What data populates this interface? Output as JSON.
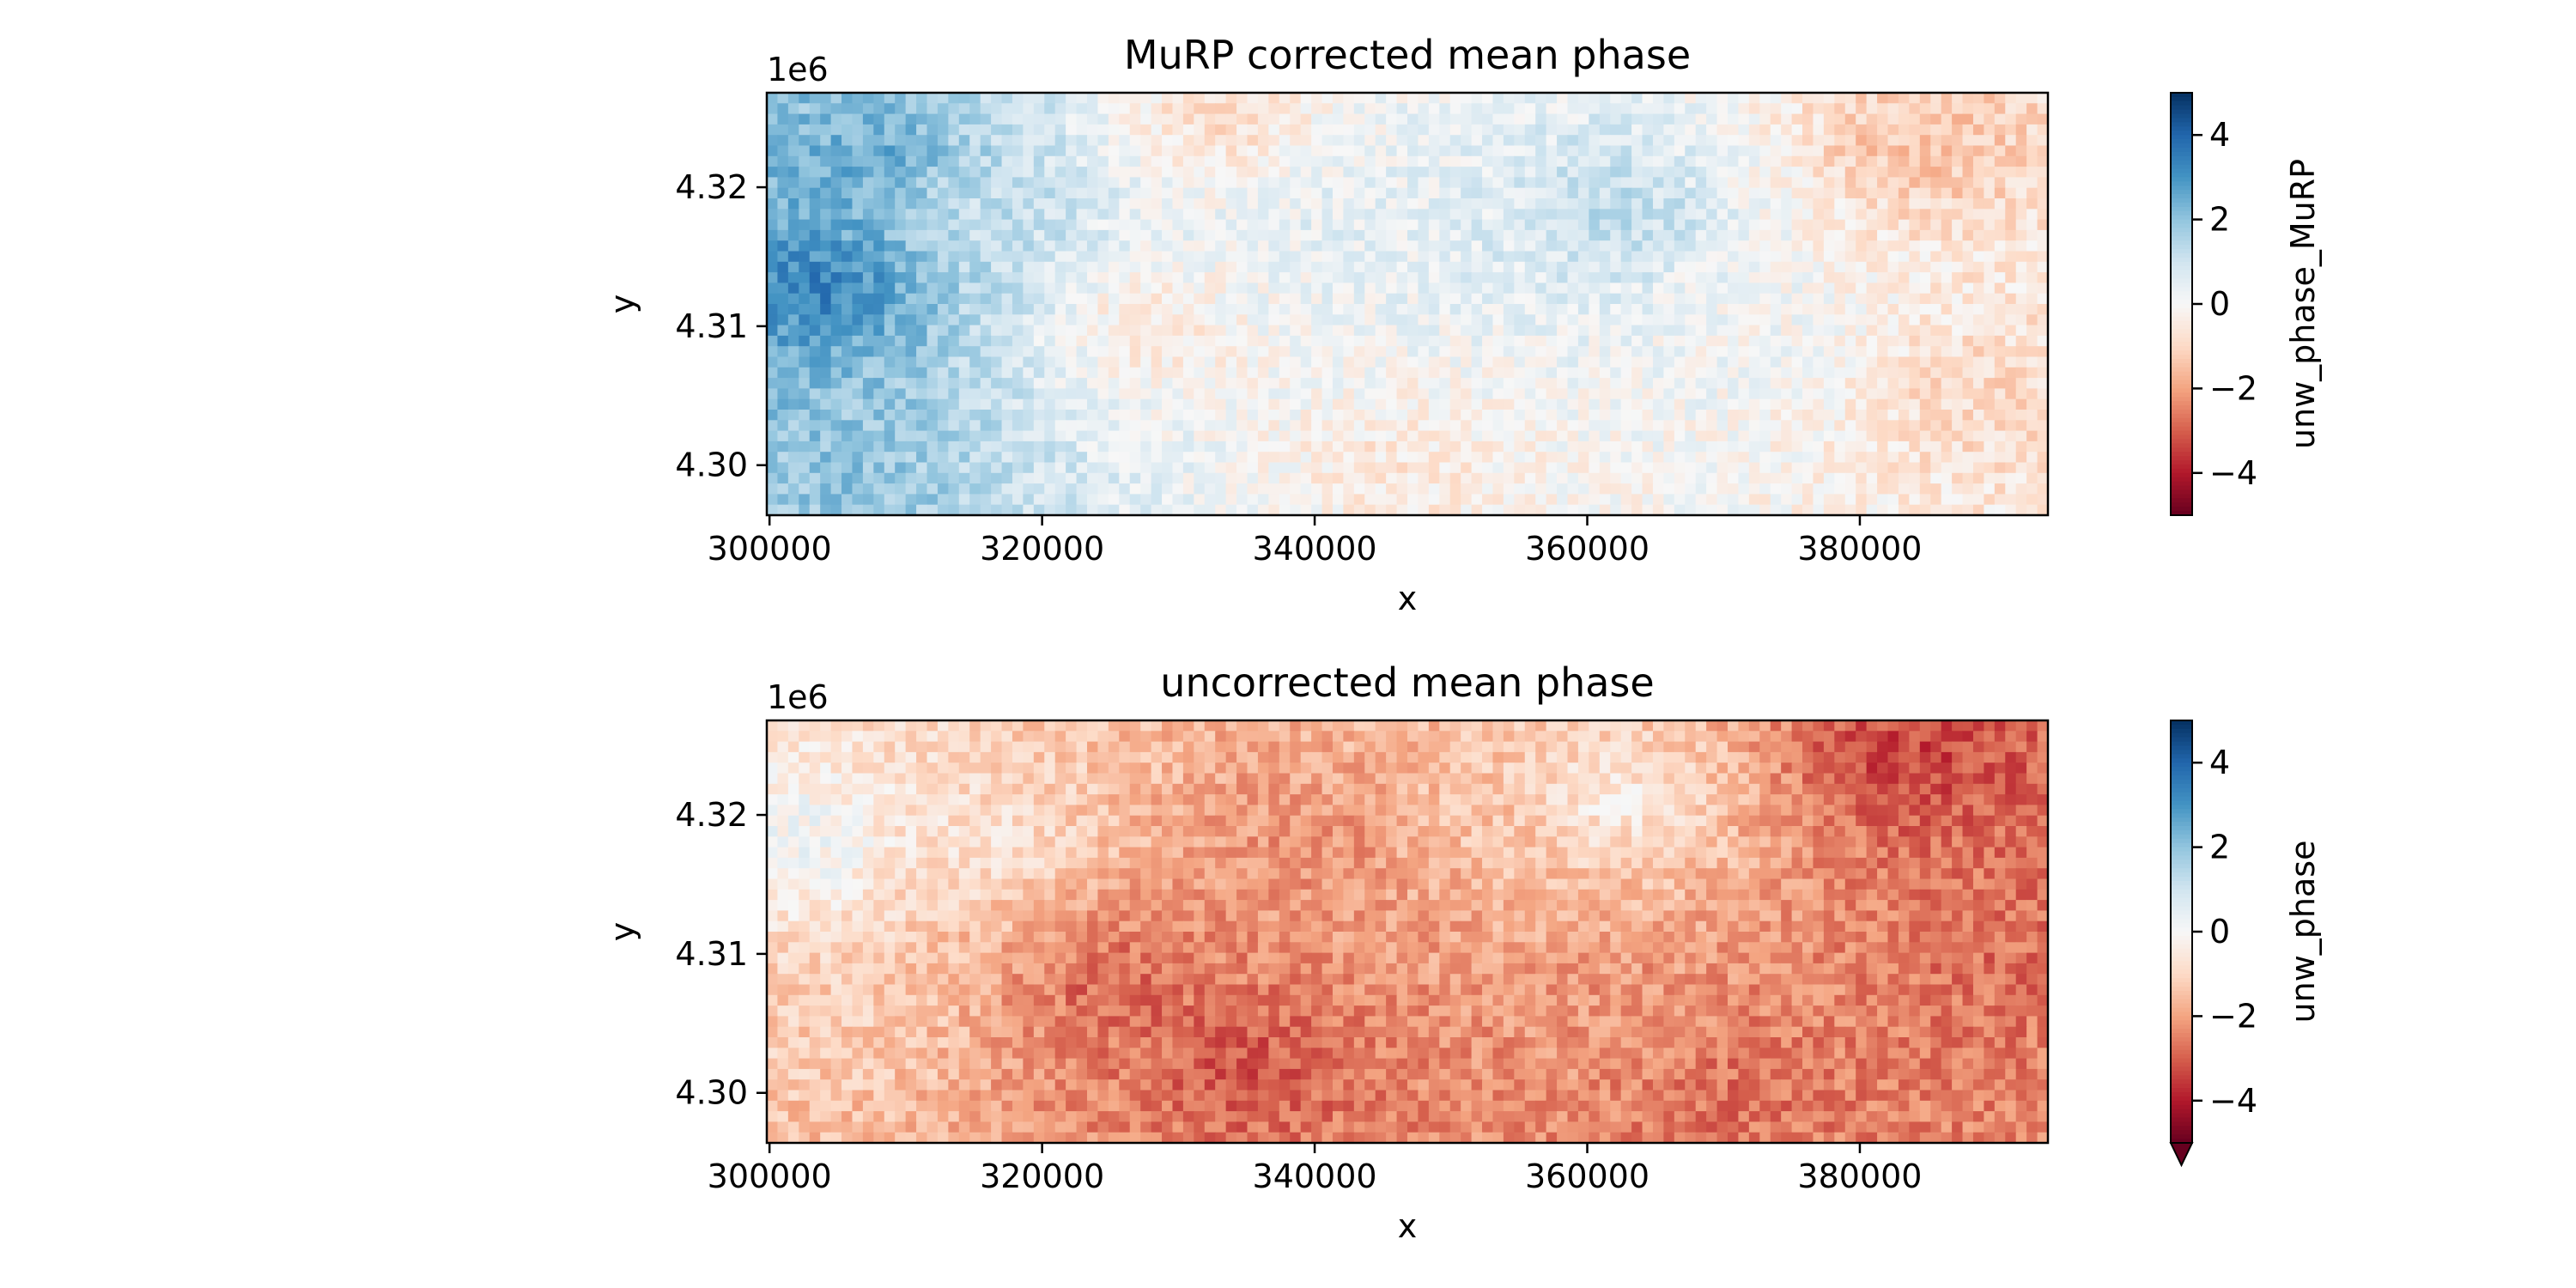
{
  "chart_data": [
    {
      "type": "heatmap",
      "title": "MuRP corrected mean phase",
      "xlabel": "x",
      "ylabel": "y",
      "y_offset_label": "1e6",
      "xlim": [
        299800,
        393800
      ],
      "ylim": [
        4.2964,
        4.3268
      ],
      "xticks": [
        300000,
        320000,
        340000,
        360000,
        380000
      ],
      "xtick_labels": [
        "300000",
        "320000",
        "340000",
        "360000",
        "380000"
      ],
      "yticks": [
        4.3,
        4.31,
        4.32
      ],
      "ytick_labels": [
        "4.30",
        "4.31",
        "4.32"
      ],
      "colormap": "RdBu",
      "colorbar": {
        "label": "unw_phase_MuRP",
        "range": [
          -5,
          5
        ],
        "ticks": [
          4,
          2,
          0,
          -2,
          -4
        ],
        "tick_labels": [
          "4",
          "2",
          "0",
          "−2",
          "−4"
        ],
        "extend_min": false
      },
      "field_pattern": [
        {
          "x": 304000,
          "y": 4.313,
          "v": 3.6
        },
        {
          "x": 308000,
          "y": 4.322,
          "v": 2.6
        },
        {
          "x": 306000,
          "y": 4.3,
          "v": 2.0
        },
        {
          "x": 316000,
          "y": 4.318,
          "v": 1.1
        },
        {
          "x": 328000,
          "y": 4.31,
          "v": -0.7
        },
        {
          "x": 342000,
          "y": 4.318,
          "v": 0.5
        },
        {
          "x": 346000,
          "y": 4.3,
          "v": -0.6
        },
        {
          "x": 362000,
          "y": 4.318,
          "v": 1.4
        },
        {
          "x": 372000,
          "y": 4.31,
          "v": 0.1
        },
        {
          "x": 384000,
          "y": 4.323,
          "v": -1.5
        },
        {
          "x": 389000,
          "y": 4.305,
          "v": -1.0
        },
        {
          "x": 333000,
          "y": 4.325,
          "v": -1.0
        }
      ]
    },
    {
      "type": "heatmap",
      "title": "uncorrected mean phase",
      "xlabel": "x",
      "ylabel": "y",
      "y_offset_label": "1e6",
      "xlim": [
        299800,
        393800
      ],
      "ylim": [
        4.2964,
        4.3268
      ],
      "xticks": [
        300000,
        320000,
        340000,
        360000,
        380000
      ],
      "xtick_labels": [
        "300000",
        "320000",
        "340000",
        "360000",
        "380000"
      ],
      "yticks": [
        4.3,
        4.31,
        4.32
      ],
      "ytick_labels": [
        "4.30",
        "4.31",
        "4.32"
      ],
      "colormap": "RdBu",
      "colorbar": {
        "label": "unw_phase",
        "range": [
          -5,
          5
        ],
        "ticks": [
          4,
          2,
          0,
          -2,
          -4
        ],
        "tick_labels": [
          "4",
          "2",
          "0",
          "−2",
          "−4"
        ],
        "extend_min": true
      },
      "field_pattern": [
        {
          "x": 302000,
          "y": 4.318,
          "v": 0.3
        },
        {
          "x": 306000,
          "y": 4.305,
          "v": -1.2
        },
        {
          "x": 316000,
          "y": 4.318,
          "v": -0.7
        },
        {
          "x": 325000,
          "y": 4.308,
          "v": -3.0
        },
        {
          "x": 335000,
          "y": 4.302,
          "v": -3.2
        },
        {
          "x": 340000,
          "y": 4.318,
          "v": -2.3
        },
        {
          "x": 352000,
          "y": 4.32,
          "v": -1.4
        },
        {
          "x": 362000,
          "y": 4.321,
          "v": -0.3
        },
        {
          "x": 360000,
          "y": 4.305,
          "v": -2.2
        },
        {
          "x": 370000,
          "y": 4.3,
          "v": -2.8
        },
        {
          "x": 383000,
          "y": 4.324,
          "v": -3.5
        },
        {
          "x": 390000,
          "y": 4.31,
          "v": -2.8
        }
      ]
    }
  ]
}
